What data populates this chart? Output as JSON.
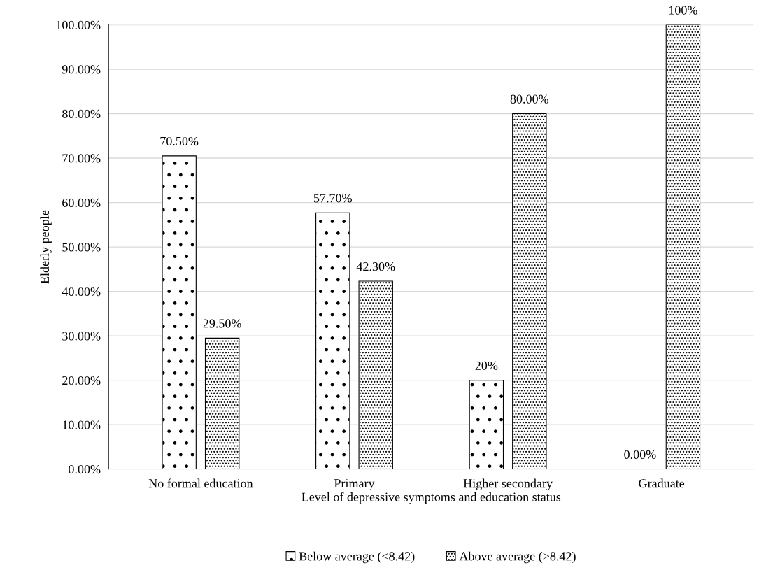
{
  "chart_data": {
    "type": "bar",
    "xlabel": "Level of depressive symptoms and education status",
    "ylabel": "Elderly people",
    "categories": [
      "No formal education",
      "Primary",
      "Higher secondary",
      "Graduate"
    ],
    "series": [
      {
        "name": "Below average (<8.42)",
        "color": "#ffffff",
        "values": [
          70.5,
          57.7,
          20,
          0
        ],
        "value_labels": [
          "70.50%",
          "57.70%",
          "20%",
          "0.00%"
        ]
      },
      {
        "name": "Above average (>8.42)",
        "color": "#ffffff",
        "values": [
          29.5,
          42.3,
          80,
          100
        ],
        "value_labels": [
          "29.50%",
          "42.30%",
          "80.00%",
          "100%"
        ]
      }
    ],
    "ylim": [
      0,
      100
    ],
    "yticks": [
      {
        "value": 0,
        "label": "0.00%"
      },
      {
        "value": 10,
        "label": "10.00%"
      },
      {
        "value": 20,
        "label": "20.00%"
      },
      {
        "value": 30,
        "label": "30.00%"
      },
      {
        "value": 40,
        "label": "40.00%"
      },
      {
        "value": 50,
        "label": "50.00%"
      },
      {
        "value": 60,
        "label": "60.00%"
      },
      {
        "value": 70,
        "label": "70.00%"
      },
      {
        "value": 80,
        "label": "80.00%"
      },
      {
        "value": 90,
        "label": "90.00%"
      },
      {
        "value": 100,
        "label": "100.00%"
      }
    ],
    "grid": "y",
    "legend": "bottom"
  }
}
